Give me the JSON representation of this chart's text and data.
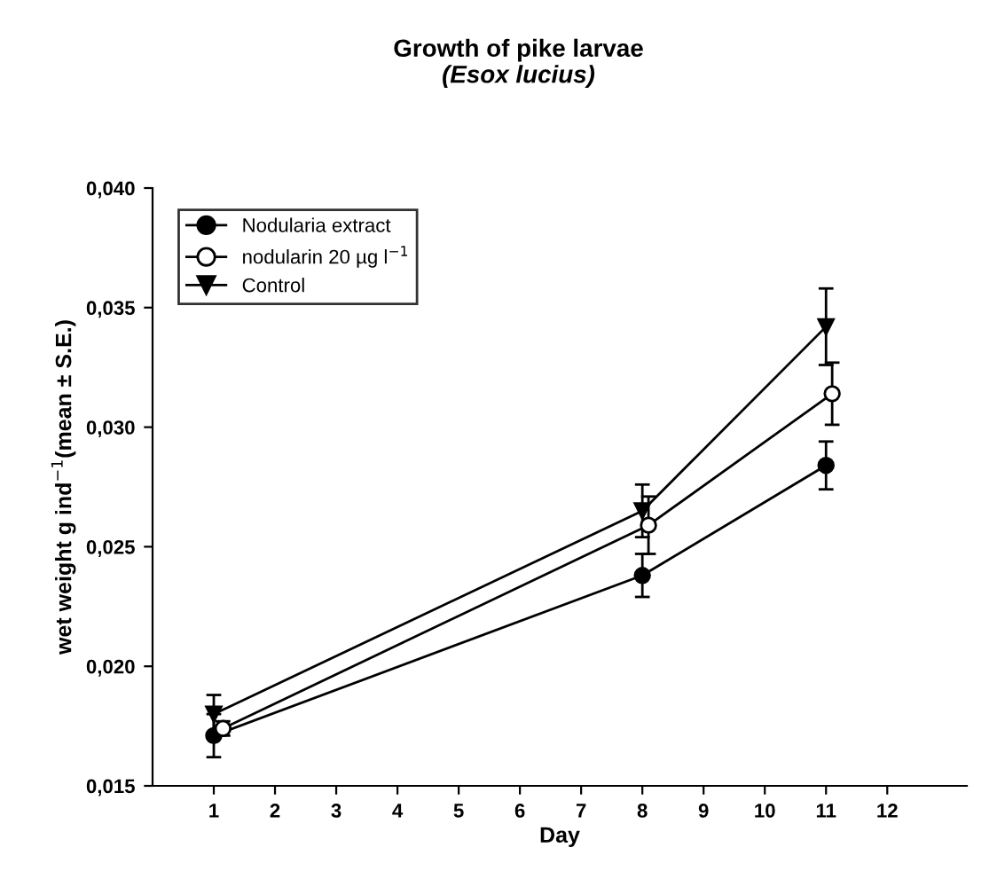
{
  "chart_data": {
    "type": "line",
    "title": "Growth of pike larvae",
    "subtitle": "(Esox lucius)",
    "xlabel": "Day",
    "ylabel": "wet weight g ind$^{−1}$(mean ± S.E.)",
    "x": [
      1,
      8,
      11
    ],
    "series": [
      {
        "name": "Nodularia extract",
        "color": "#000000",
        "marker": "circle",
        "values": [
          0.0171,
          0.0238,
          0.0284
        ],
        "errors": [
          0.0009,
          0.0009,
          0.001
        ]
      },
      {
        "name": "nodularin 20 µg l$^{−1}$",
        "color": "#000000",
        "marker": "circle",
        "x": [
          1.15,
          8.1,
          11.1
        ],
        "values": [
          0.0174,
          0.0259,
          0.0314
        ],
        "errors": [
          0.0003,
          0.0012,
          0.0013
        ]
      },
      {
        "name": "Control",
        "color": "#000000",
        "marker": "triangle",
        "values": [
          0.018,
          0.0265,
          0.0342
        ],
        "errors": [
          0.0008,
          0.0011,
          0.0016
        ]
      }
    ],
    "xlim": [
      0,
      13.3
    ],
    "xticks": [
      1,
      2,
      3,
      4,
      5,
      6,
      7,
      8,
      9,
      10,
      11,
      12
    ],
    "ylim": [
      0.015,
      0.04
    ],
    "yticks": [
      {
        "value": 0.015,
        "label": "0,015"
      },
      {
        "value": 0.02,
        "label": "0,020"
      },
      {
        "value": 0.025,
        "label": "0,025"
      },
      {
        "value": 0.03,
        "label": "0,030"
      },
      {
        "value": 0.035,
        "label": "0,035"
      },
      {
        "value": 0.04,
        "label": "0,040"
      }
    ],
    "legend": "top left",
    "grid": false,
    "line_style": "solid"
  }
}
